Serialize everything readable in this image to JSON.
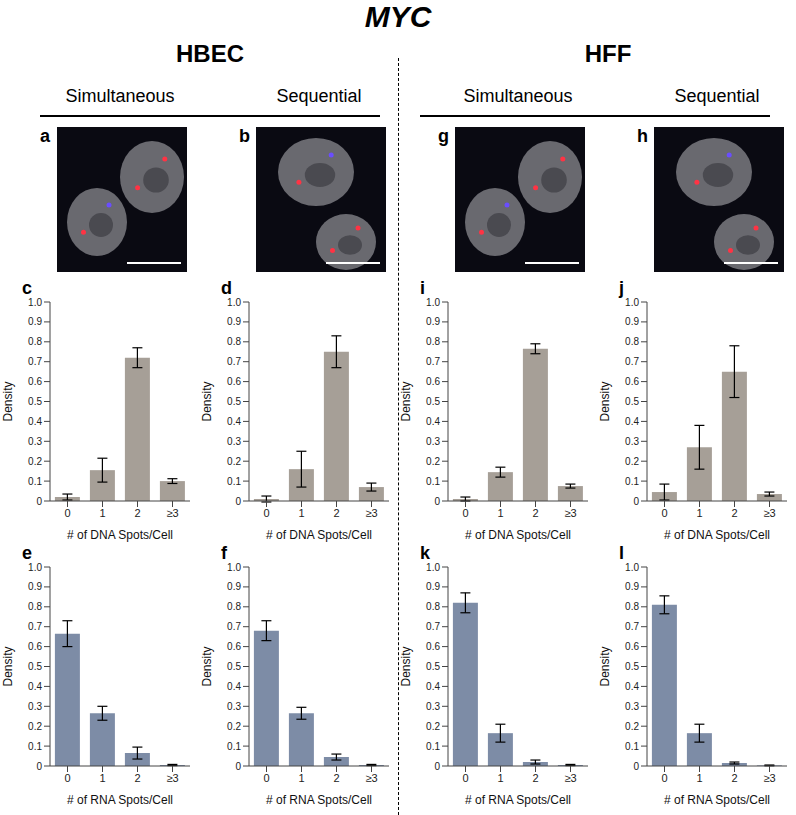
{
  "title": "MYC",
  "groups": [
    {
      "name": "HBEC",
      "conditions": [
        "Simultaneous",
        "Sequential"
      ],
      "images": [
        "a",
        "b"
      ]
    },
    {
      "name": "HFF",
      "conditions": [
        "Simultaneous",
        "Sequential"
      ],
      "images": [
        "g",
        "h"
      ]
    }
  ],
  "chart_data": [
    {
      "panel": "c",
      "type": "bar",
      "categories": [
        "0",
        "1",
        "2",
        "≥3"
      ],
      "values": [
        0.02,
        0.155,
        0.72,
        0.1
      ],
      "errors": [
        0.015,
        0.06,
        0.05,
        0.012
      ],
      "color": "#a69f97",
      "x_label": "# of DNA Spots/Cell",
      "y_label": "Density",
      "ylim": [
        0,
        1
      ],
      "yticks": [
        0,
        0.1,
        0.2,
        0.3,
        0.4,
        0.5,
        0.6,
        0.7,
        0.8,
        0.9,
        {
          "value": 1,
          "label": "1.0"
        }
      ]
    },
    {
      "panel": "d",
      "type": "bar",
      "categories": [
        "0",
        "1",
        "2",
        "≥3"
      ],
      "values": [
        0.01,
        0.16,
        0.75,
        0.07
      ],
      "errors": [
        0.015,
        0.09,
        0.08,
        0.02
      ],
      "color": "#a69f97",
      "x_label": "# of DNA Spots/Cell",
      "y_label": "Density",
      "ylim": [
        0,
        1
      ],
      "yticks": [
        0,
        0.1,
        0.2,
        0.3,
        0.4,
        0.5,
        0.6,
        0.7,
        0.8,
        0.9,
        {
          "value": 1,
          "label": "1.0"
        }
      ]
    },
    {
      "panel": "i",
      "type": "bar",
      "categories": [
        "0",
        "1",
        "2",
        "≥3"
      ],
      "values": [
        0.01,
        0.145,
        0.765,
        0.075
      ],
      "errors": [
        0.01,
        0.025,
        0.025,
        0.01
      ],
      "color": "#a69f97",
      "x_label": "# of DNA Spots/Cell",
      "y_label": "Density",
      "ylim": [
        0,
        1
      ],
      "yticks": [
        0,
        0.1,
        0.2,
        0.3,
        0.4,
        0.5,
        0.6,
        0.7,
        0.8,
        0.9,
        {
          "value": 1,
          "label": "1.0"
        }
      ]
    },
    {
      "panel": "j",
      "type": "bar",
      "categories": [
        "0",
        "1",
        "2",
        "≥3"
      ],
      "values": [
        0.045,
        0.27,
        0.65,
        0.035
      ],
      "errors": [
        0.04,
        0.11,
        0.13,
        0.01
      ],
      "color": "#a69f97",
      "x_label": "# of DNA Spots/Cell",
      "y_label": "Density",
      "ylim": [
        0,
        1
      ],
      "yticks": [
        0,
        0.1,
        0.2,
        0.3,
        0.4,
        0.5,
        0.6,
        0.7,
        0.8,
        0.9,
        {
          "value": 1,
          "label": "1.0"
        }
      ]
    },
    {
      "panel": "e",
      "type": "bar",
      "categories": [
        "0",
        "1",
        "2",
        "≥3"
      ],
      "values": [
        0.665,
        0.265,
        0.065,
        0.005
      ],
      "errors": [
        0.065,
        0.035,
        0.03,
        0.003
      ],
      "color": "#7d8ca6",
      "x_label": "# of RNA Spots/Cell",
      "y_label": "Density",
      "ylim": [
        0,
        1
      ],
      "yticks": [
        0,
        0.1,
        0.2,
        0.3,
        0.4,
        0.5,
        0.6,
        0.7,
        0.8,
        0.9,
        {
          "value": 1,
          "label": "1.0"
        }
      ]
    },
    {
      "panel": "f",
      "type": "bar",
      "categories": [
        "0",
        "1",
        "2",
        "≥3"
      ],
      "values": [
        0.68,
        0.265,
        0.045,
        0.005
      ],
      "errors": [
        0.05,
        0.03,
        0.015,
        0.003
      ],
      "color": "#7d8ca6",
      "x_label": "# of RNA Spots/Cell",
      "y_label": "Density",
      "ylim": [
        0,
        1
      ],
      "yticks": [
        0,
        0.1,
        0.2,
        0.3,
        0.4,
        0.5,
        0.6,
        0.7,
        0.8,
        0.9,
        {
          "value": 1,
          "label": "1.0"
        }
      ]
    },
    {
      "panel": "k",
      "type": "bar",
      "categories": [
        "0",
        "1",
        "2",
        "≥3"
      ],
      "values": [
        0.82,
        0.165,
        0.02,
        0.005
      ],
      "errors": [
        0.05,
        0.045,
        0.01,
        0.003
      ],
      "color": "#7d8ca6",
      "x_label": "# of RNA Spots/Cell",
      "y_label": "Density",
      "ylim": [
        0,
        1
      ],
      "yticks": [
        0,
        0.1,
        0.2,
        0.3,
        0.4,
        0.5,
        0.6,
        0.7,
        0.8,
        0.9,
        {
          "value": 1,
          "label": "1.0"
        }
      ]
    },
    {
      "panel": "l",
      "type": "bar",
      "categories": [
        "0",
        "1",
        "2",
        "≥3"
      ],
      "values": [
        0.81,
        0.165,
        0.015,
        0.003
      ],
      "errors": [
        0.045,
        0.045,
        0.005,
        0.002
      ],
      "color": "#7d8ca6",
      "x_label": "# of RNA Spots/Cell",
      "y_label": "Density",
      "ylim": [
        0,
        1
      ],
      "yticks": [
        0,
        0.1,
        0.2,
        0.3,
        0.4,
        0.5,
        0.6,
        0.7,
        0.8,
        0.9,
        {
          "value": 1,
          "label": "1.0"
        }
      ]
    }
  ]
}
